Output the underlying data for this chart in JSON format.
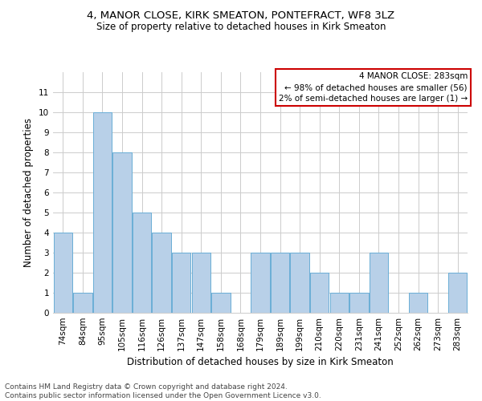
{
  "title": "4, MANOR CLOSE, KIRK SMEATON, PONTEFRACT, WF8 3LZ",
  "subtitle": "Size of property relative to detached houses in Kirk Smeaton",
  "xlabel": "Distribution of detached houses by size in Kirk Smeaton",
  "ylabel": "Number of detached properties",
  "footer": "Contains HM Land Registry data © Crown copyright and database right 2024.\nContains public sector information licensed under the Open Government Licence v3.0.",
  "categories": [
    "74sqm",
    "84sqm",
    "95sqm",
    "105sqm",
    "116sqm",
    "126sqm",
    "137sqm",
    "147sqm",
    "158sqm",
    "168sqm",
    "179sqm",
    "189sqm",
    "199sqm",
    "210sqm",
    "220sqm",
    "231sqm",
    "241sqm",
    "252sqm",
    "262sqm",
    "273sqm",
    "283sqm"
  ],
  "values": [
    4,
    1,
    10,
    8,
    5,
    4,
    3,
    3,
    1,
    0,
    3,
    3,
    3,
    2,
    1,
    1,
    3,
    0,
    1,
    0,
    2
  ],
  "bar_color": "#b8d0e8",
  "bar_edgecolor": "#6aaed6",
  "ylim": [
    0,
    12
  ],
  "yticks": [
    0,
    1,
    2,
    3,
    4,
    5,
    6,
    7,
    8,
    9,
    10,
    11
  ],
  "annotation_box_text": "4 MANOR CLOSE: 283sqm\n← 98% of detached houses are smaller (56)\n2% of semi-detached houses are larger (1) →",
  "annotation_box_color": "#ffffff",
  "annotation_box_edgecolor": "#cc0000",
  "grid_color": "#cccccc",
  "background_color": "#ffffff",
  "title_fontsize": 9.5,
  "subtitle_fontsize": 8.5,
  "ylabel_fontsize": 8.5,
  "xlabel_fontsize": 8.5,
  "tick_fontsize": 7.5,
  "annot_fontsize": 7.5,
  "footer_fontsize": 6.5
}
